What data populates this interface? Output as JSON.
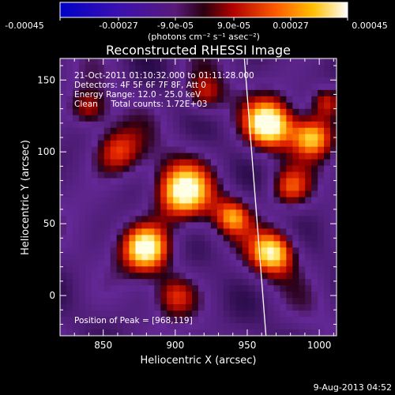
{
  "chart_data": {
    "type": "heatmap",
    "title": "Reconstructed RHESSI Image",
    "xlabel": "Heliocentric X (arcsec)",
    "ylabel": "Heliocentric Y (arcsec)",
    "xlim": [
      820,
      1012
    ],
    "ylim": [
      -28,
      165
    ],
    "x_ticks": [
      850,
      900,
      950,
      1000
    ],
    "y_ticks": [
      0,
      50,
      100,
      150
    ],
    "grid": false,
    "colorbar": {
      "placement": "top",
      "range": [
        -0.00045,
        0.00045
      ],
      "tick_labels": [
        "-0.00045",
        "-0.00027",
        "-9.0e-05",
        "9.0e-05",
        "0.00027",
        "0.00045"
      ],
      "unit_label": "(photons cm⁻² s⁻¹ asec⁻²)",
      "colormap": "rainbow-blue-purple-red-yellow-white"
    },
    "annotations": [
      "21-Oct-2011 01:10:32.000 to 01:11:28.000",
      "Detectors: 4F 5F 6F 7F 8F, Att 0",
      "Energy Range: 12.0 - 25.0 keV",
      "Clean     Total counts: 1.72E+03"
    ],
    "peak_label": "Position of Peak = [968,119]",
    "limb_line": [
      [
        948,
        165
      ],
      [
        963,
        -28
      ]
    ],
    "peaks": [
      {
        "x": 965,
        "y": 119,
        "intensity": 1.0,
        "sigma": 12
      },
      {
        "x": 995,
        "y": 110,
        "intensity": 0.75,
        "sigma": 10
      },
      {
        "x": 905,
        "y": 72,
        "intensity": 0.9,
        "sigma": 14
      },
      {
        "x": 880,
        "y": 33,
        "intensity": 0.95,
        "sigma": 12
      },
      {
        "x": 968,
        "y": 30,
        "intensity": 0.85,
        "sigma": 11
      },
      {
        "x": 940,
        "y": 55,
        "intensity": 0.6,
        "sigma": 9
      },
      {
        "x": 860,
        "y": 100,
        "intensity": 0.55,
        "sigma": 12
      },
      {
        "x": 840,
        "y": 130,
        "intensity": 0.45,
        "sigma": 9
      },
      {
        "x": 920,
        "y": 140,
        "intensity": 0.5,
        "sigma": 10
      },
      {
        "x": 980,
        "y": 75,
        "intensity": 0.55,
        "sigma": 10
      },
      {
        "x": 900,
        "y": 0,
        "intensity": 0.45,
        "sigma": 10
      },
      {
        "x": 1005,
        "y": 135,
        "intensity": 0.5,
        "sigma": 8
      }
    ]
  },
  "footer": {
    "timestamp": "9-Aug-2013 04:52"
  }
}
